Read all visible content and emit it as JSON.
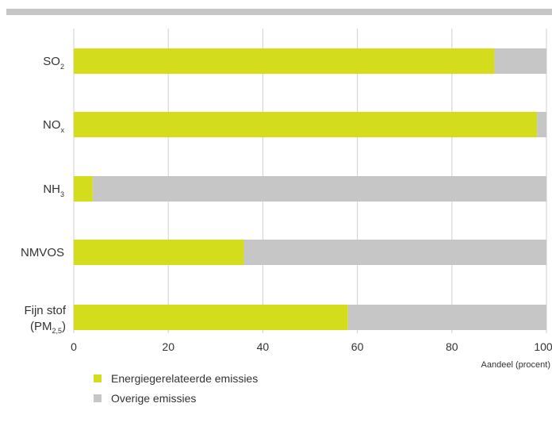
{
  "chart_data": {
    "type": "bar",
    "stacked": true,
    "orientation": "horizontal",
    "categories": [
      {
        "main": "SO",
        "sub": "2"
      },
      {
        "main": "NO",
        "sub": "x"
      },
      {
        "main": "NH",
        "sub": "3"
      },
      {
        "main": "NMVOS",
        "sub": ""
      },
      {
        "main": "Fijn stof",
        "line2": "(PM",
        "sub": "2,5",
        "close": ")"
      }
    ],
    "series": [
      {
        "name": "Energiegerelateerde emissies",
        "color": "#d4dd1c",
        "values": [
          89,
          98,
          4,
          36,
          58
        ]
      },
      {
        "name": "Overige emissies",
        "color": "#c6c6c6",
        "values": [
          11,
          2,
          96,
          64,
          42
        ]
      }
    ],
    "xlim": [
      0,
      100
    ],
    "xticks": [
      "0",
      "20",
      "40",
      "60",
      "80",
      "100"
    ],
    "xlabel": "Aandeel (procent)",
    "grid": true,
    "legend_position": "bottom-left",
    "header_bar_color": "#c6c6c6",
    "grid_color": "#cfcfcf"
  }
}
